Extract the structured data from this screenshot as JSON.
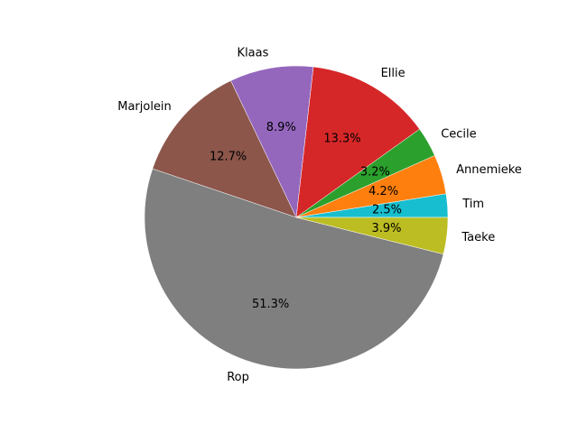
{
  "chart_data": {
    "type": "pie",
    "slices": [
      {
        "label": "Tim",
        "value": 2.5,
        "pct_label": "2.5%",
        "color": "#17becf"
      },
      {
        "label": "Annemieke",
        "value": 4.2,
        "pct_label": "4.2%",
        "color": "#ff7f0e"
      },
      {
        "label": "Cecile",
        "value": 3.2,
        "pct_label": "3.2%",
        "color": "#2ca02c"
      },
      {
        "label": "Ellie",
        "value": 13.3,
        "pct_label": "13.3%",
        "color": "#d62728"
      },
      {
        "label": "Klaas",
        "value": 8.9,
        "pct_label": "8.9%",
        "color": "#9467bd"
      },
      {
        "label": "Marjolein",
        "value": 12.7,
        "pct_label": "12.7%",
        "color": "#8c564b"
      },
      {
        "label": "Rop",
        "value": 51.3,
        "pct_label": "51.3%",
        "color": "#7f7f7f"
      },
      {
        "label": "Taeke",
        "value": 3.9,
        "pct_label": "3.9%",
        "color": "#bcbd22"
      }
    ],
    "start_angle_deg": 0,
    "direction": "counterclockwise",
    "edge_color": "#ffffff"
  }
}
